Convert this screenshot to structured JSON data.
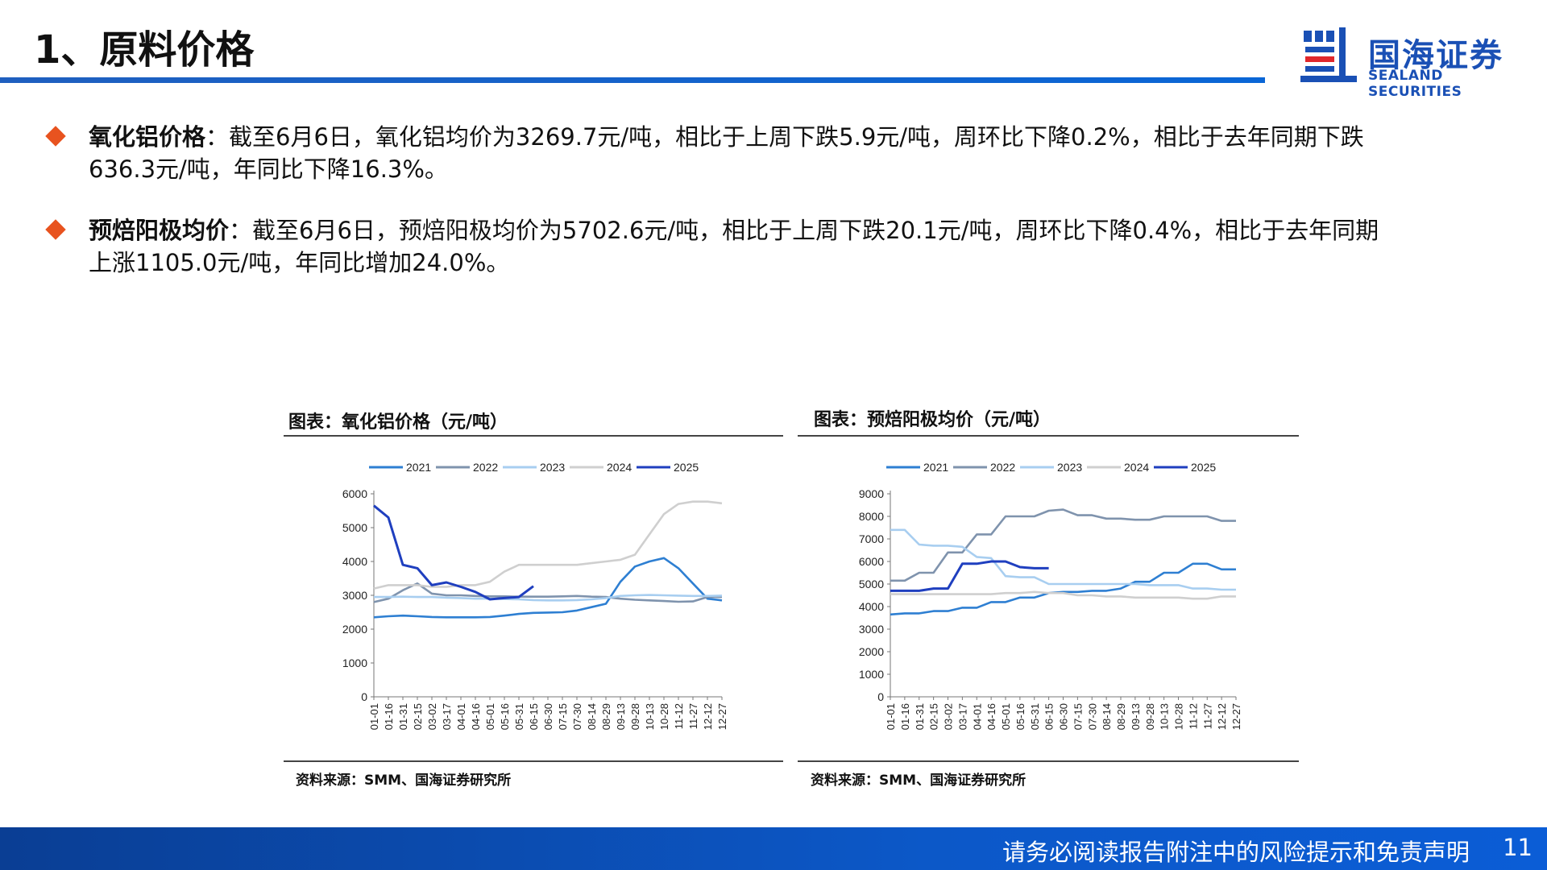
{
  "header": {
    "title": "1、原料价格",
    "logo_name": "国海证券",
    "logo_en": "SEALAND SECURITIES"
  },
  "bullets": [
    {
      "label": "氧化铝价格",
      "line1": "：截至6月6日，氧化铝均价为3269.7元/吨，相比于上周下跌5.9元/吨，周环比下降0.2%，相比于去年同期下跌",
      "line2": "636.3元/吨，年同比下降16.3%。"
    },
    {
      "label": "预焙阳极均价",
      "line1": "：截至6月6日，预焙阳极均价为5702.6元/吨，相比于上周下跌20.1元/吨，周环比下降0.4%，相比于去年同期",
      "line2": "上涨1105.0元/吨，年同比增加24.0%。"
    }
  ],
  "footer": {
    "disclaimer": "请务必阅读报告附注中的风险提示和免责声明",
    "page": "11"
  },
  "chart_data": [
    {
      "type": "line",
      "title": "图表：氧化铝价格（元/吨）",
      "source": "资料来源：SMM、国海证券研究所",
      "ylim": [
        0,
        6000
      ],
      "yticks": [
        0,
        1000,
        2000,
        3000,
        4000,
        5000,
        6000
      ],
      "x": [
        "01-01",
        "01-16",
        "01-31",
        "02-15",
        "03-02",
        "03-17",
        "04-01",
        "04-16",
        "05-01",
        "05-16",
        "05-31",
        "06-15",
        "06-30",
        "07-15",
        "07-30",
        "08-14",
        "08-29",
        "09-13",
        "09-28",
        "10-13",
        "10-28",
        "11-12",
        "11-27",
        "12-12",
        "12-27"
      ],
      "legend_position": "top",
      "series": [
        {
          "name": "2021",
          "color": "#2e7fd2",
          "values": [
            2350,
            2380,
            2400,
            2380,
            2360,
            2350,
            2350,
            2350,
            2360,
            2400,
            2450,
            2480,
            2490,
            2500,
            2550,
            2650,
            2750,
            3400,
            3850,
            4000,
            4100,
            3800,
            3350,
            2900,
            2850
          ]
        },
        {
          "name": "2022",
          "color": "#7f93ad",
          "values": [
            2800,
            2900,
            3150,
            3350,
            3050,
            3000,
            3000,
            2980,
            2970,
            2970,
            2960,
            2960,
            2960,
            2970,
            2980,
            2960,
            2950,
            2900,
            2870,
            2850,
            2830,
            2810,
            2820,
            2950,
            2950
          ]
        },
        {
          "name": "2023",
          "color": "#a8cef0",
          "values": [
            2950,
            2950,
            2960,
            2950,
            2950,
            2930,
            2920,
            2900,
            2900,
            2890,
            2880,
            2860,
            2850,
            2850,
            2860,
            2880,
            2920,
            2980,
            3000,
            3010,
            3000,
            2990,
            2980,
            2980,
            2990
          ]
        },
        {
          "name": "2024",
          "color": "#cfcfcf",
          "values": [
            3200,
            3300,
            3300,
            3300,
            3250,
            3250,
            3300,
            3300,
            3400,
            3700,
            3900,
            3900,
            3900,
            3900,
            3900,
            3950,
            4000,
            4050,
            4200,
            4800,
            5400,
            5700,
            5770,
            5770,
            5720
          ]
        },
        {
          "name": "2025",
          "color": "#1f3fbf",
          "values": [
            5650,
            5300,
            3900,
            3800,
            3300,
            3380,
            3250,
            3100,
            2880,
            2920,
            2950,
            3270,
            null,
            null,
            null,
            null,
            null,
            null,
            null,
            null,
            null,
            null,
            null,
            null,
            null
          ]
        }
      ]
    },
    {
      "type": "line",
      "title": "图表：预焙阳极均价（元/吨）",
      "source": "资料来源：SMM、国海证券研究所",
      "ylim": [
        0,
        9000
      ],
      "yticks": [
        0,
        1000,
        2000,
        3000,
        4000,
        5000,
        6000,
        7000,
        8000,
        9000
      ],
      "x": [
        "01-01",
        "01-16",
        "01-31",
        "02-15",
        "03-02",
        "03-17",
        "04-01",
        "04-16",
        "05-01",
        "05-16",
        "05-31",
        "06-15",
        "06-30",
        "07-15",
        "07-30",
        "08-14",
        "08-29",
        "09-13",
        "09-28",
        "10-13",
        "10-28",
        "11-12",
        "11-27",
        "12-12",
        "12-27"
      ],
      "legend_position": "top",
      "series": [
        {
          "name": "2021",
          "color": "#2e7fd2",
          "values": [
            3650,
            3700,
            3700,
            3800,
            3800,
            3950,
            3950,
            4200,
            4200,
            4400,
            4400,
            4600,
            4650,
            4650,
            4700,
            4700,
            4800,
            5100,
            5100,
            5500,
            5500,
            5900,
            5900,
            5650,
            5650
          ]
        },
        {
          "name": "2022",
          "color": "#7f93ad",
          "values": [
            5150,
            5150,
            5500,
            5500,
            6400,
            6400,
            7200,
            7200,
            8000,
            8000,
            8000,
            8250,
            8300,
            8050,
            8050,
            7900,
            7900,
            7850,
            7850,
            8000,
            8000,
            8000,
            8000,
            7800,
            7800
          ]
        },
        {
          "name": "2023",
          "color": "#a8cef0",
          "values": [
            7400,
            7400,
            6750,
            6700,
            6700,
            6650,
            6200,
            6150,
            5350,
            5300,
            5300,
            5000,
            5000,
            5000,
            5000,
            5000,
            5000,
            5000,
            4950,
            4950,
            4950,
            4800,
            4800,
            4750,
            4750
          ]
        },
        {
          "name": "2024",
          "color": "#cfcfcf",
          "values": [
            4550,
            4550,
            4550,
            4550,
            4550,
            4550,
            4550,
            4550,
            4600,
            4600,
            4650,
            4600,
            4600,
            4500,
            4500,
            4450,
            4450,
            4400,
            4400,
            4400,
            4400,
            4350,
            4350,
            4450,
            4450
          ]
        },
        {
          "name": "2025",
          "color": "#1f3fbf",
          "values": [
            4700,
            4700,
            4700,
            4800,
            4800,
            5900,
            5900,
            6000,
            6000,
            5750,
            5700,
            5700,
            null,
            null,
            null,
            null,
            null,
            null,
            null,
            null,
            null,
            null,
            null,
            null,
            null
          ]
        }
      ]
    }
  ]
}
